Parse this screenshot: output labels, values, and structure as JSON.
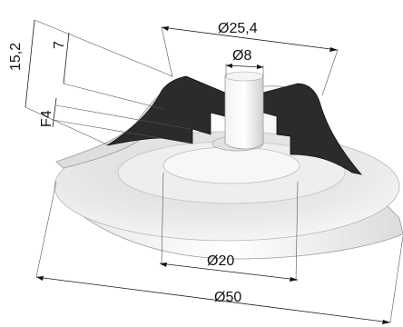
{
  "dimensions": {
    "d_top": "Ø25,4",
    "d_bore": "Ø8",
    "d_inner": "Ø20",
    "d_outer": "Ø50",
    "h_total": "15,2",
    "h_part": "7",
    "thread": "F4"
  },
  "colors": {
    "section": "#2b2b2b",
    "body_light": "#f4f4f4",
    "body_shadow": "#cfcfcf"
  }
}
